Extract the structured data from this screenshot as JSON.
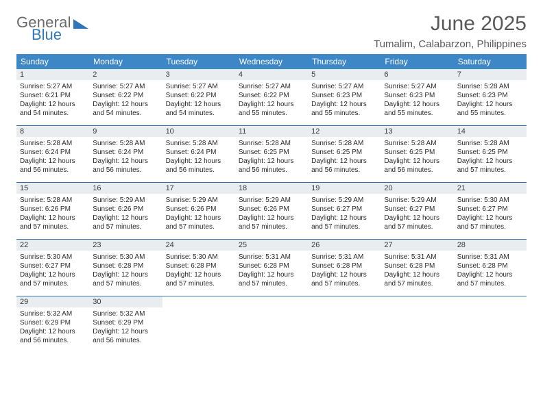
{
  "brand": {
    "word1": "General",
    "word2": "Blue"
  },
  "title": "June 2025",
  "location": "Tumalim, Calabarzon, Philippines",
  "colors": {
    "header_bg": "#3d87c7",
    "header_text": "#ffffff",
    "daynum_bg": "#e9edf0",
    "row_border": "#2f6fa8",
    "brand_gray": "#6a6a6a",
    "brand_blue": "#2f76bb",
    "text": "#2b2b2b",
    "title_gray": "#595959",
    "page_bg": "#ffffff"
  },
  "typography": {
    "title_fontsize": 30,
    "location_fontsize": 15,
    "dayheader_fontsize": 12,
    "daynum_fontsize": 11,
    "info_fontsize": 10
  },
  "day_headers": [
    "Sunday",
    "Monday",
    "Tuesday",
    "Wednesday",
    "Thursday",
    "Friday",
    "Saturday"
  ],
  "weeks": [
    [
      {
        "n": "1",
        "sr": "Sunrise: 5:27 AM",
        "ss": "Sunset: 6:21 PM",
        "dl": "Daylight: 12 hours and 54 minutes."
      },
      {
        "n": "2",
        "sr": "Sunrise: 5:27 AM",
        "ss": "Sunset: 6:22 PM",
        "dl": "Daylight: 12 hours and 54 minutes."
      },
      {
        "n": "3",
        "sr": "Sunrise: 5:27 AM",
        "ss": "Sunset: 6:22 PM",
        "dl": "Daylight: 12 hours and 54 minutes."
      },
      {
        "n": "4",
        "sr": "Sunrise: 5:27 AM",
        "ss": "Sunset: 6:22 PM",
        "dl": "Daylight: 12 hours and 55 minutes."
      },
      {
        "n": "5",
        "sr": "Sunrise: 5:27 AM",
        "ss": "Sunset: 6:23 PM",
        "dl": "Daylight: 12 hours and 55 minutes."
      },
      {
        "n": "6",
        "sr": "Sunrise: 5:27 AM",
        "ss": "Sunset: 6:23 PM",
        "dl": "Daylight: 12 hours and 55 minutes."
      },
      {
        "n": "7",
        "sr": "Sunrise: 5:28 AM",
        "ss": "Sunset: 6:23 PM",
        "dl": "Daylight: 12 hours and 55 minutes."
      }
    ],
    [
      {
        "n": "8",
        "sr": "Sunrise: 5:28 AM",
        "ss": "Sunset: 6:24 PM",
        "dl": "Daylight: 12 hours and 56 minutes."
      },
      {
        "n": "9",
        "sr": "Sunrise: 5:28 AM",
        "ss": "Sunset: 6:24 PM",
        "dl": "Daylight: 12 hours and 56 minutes."
      },
      {
        "n": "10",
        "sr": "Sunrise: 5:28 AM",
        "ss": "Sunset: 6:24 PM",
        "dl": "Daylight: 12 hours and 56 minutes."
      },
      {
        "n": "11",
        "sr": "Sunrise: 5:28 AM",
        "ss": "Sunset: 6:25 PM",
        "dl": "Daylight: 12 hours and 56 minutes."
      },
      {
        "n": "12",
        "sr": "Sunrise: 5:28 AM",
        "ss": "Sunset: 6:25 PM",
        "dl": "Daylight: 12 hours and 56 minutes."
      },
      {
        "n": "13",
        "sr": "Sunrise: 5:28 AM",
        "ss": "Sunset: 6:25 PM",
        "dl": "Daylight: 12 hours and 56 minutes."
      },
      {
        "n": "14",
        "sr": "Sunrise: 5:28 AM",
        "ss": "Sunset: 6:25 PM",
        "dl": "Daylight: 12 hours and 57 minutes."
      }
    ],
    [
      {
        "n": "15",
        "sr": "Sunrise: 5:28 AM",
        "ss": "Sunset: 6:26 PM",
        "dl": "Daylight: 12 hours and 57 minutes."
      },
      {
        "n": "16",
        "sr": "Sunrise: 5:29 AM",
        "ss": "Sunset: 6:26 PM",
        "dl": "Daylight: 12 hours and 57 minutes."
      },
      {
        "n": "17",
        "sr": "Sunrise: 5:29 AM",
        "ss": "Sunset: 6:26 PM",
        "dl": "Daylight: 12 hours and 57 minutes."
      },
      {
        "n": "18",
        "sr": "Sunrise: 5:29 AM",
        "ss": "Sunset: 6:26 PM",
        "dl": "Daylight: 12 hours and 57 minutes."
      },
      {
        "n": "19",
        "sr": "Sunrise: 5:29 AM",
        "ss": "Sunset: 6:27 PM",
        "dl": "Daylight: 12 hours and 57 minutes."
      },
      {
        "n": "20",
        "sr": "Sunrise: 5:29 AM",
        "ss": "Sunset: 6:27 PM",
        "dl": "Daylight: 12 hours and 57 minutes."
      },
      {
        "n": "21",
        "sr": "Sunrise: 5:30 AM",
        "ss": "Sunset: 6:27 PM",
        "dl": "Daylight: 12 hours and 57 minutes."
      }
    ],
    [
      {
        "n": "22",
        "sr": "Sunrise: 5:30 AM",
        "ss": "Sunset: 6:27 PM",
        "dl": "Daylight: 12 hours and 57 minutes."
      },
      {
        "n": "23",
        "sr": "Sunrise: 5:30 AM",
        "ss": "Sunset: 6:28 PM",
        "dl": "Daylight: 12 hours and 57 minutes."
      },
      {
        "n": "24",
        "sr": "Sunrise: 5:30 AM",
        "ss": "Sunset: 6:28 PM",
        "dl": "Daylight: 12 hours and 57 minutes."
      },
      {
        "n": "25",
        "sr": "Sunrise: 5:31 AM",
        "ss": "Sunset: 6:28 PM",
        "dl": "Daylight: 12 hours and 57 minutes."
      },
      {
        "n": "26",
        "sr": "Sunrise: 5:31 AM",
        "ss": "Sunset: 6:28 PM",
        "dl": "Daylight: 12 hours and 57 minutes."
      },
      {
        "n": "27",
        "sr": "Sunrise: 5:31 AM",
        "ss": "Sunset: 6:28 PM",
        "dl": "Daylight: 12 hours and 57 minutes."
      },
      {
        "n": "28",
        "sr": "Sunrise: 5:31 AM",
        "ss": "Sunset: 6:28 PM",
        "dl": "Daylight: 12 hours and 57 minutes."
      }
    ],
    [
      {
        "n": "29",
        "sr": "Sunrise: 5:32 AM",
        "ss": "Sunset: 6:29 PM",
        "dl": "Daylight: 12 hours and 56 minutes."
      },
      {
        "n": "30",
        "sr": "Sunrise: 5:32 AM",
        "ss": "Sunset: 6:29 PM",
        "dl": "Daylight: 12 hours and 56 minutes."
      },
      null,
      null,
      null,
      null,
      null
    ]
  ]
}
